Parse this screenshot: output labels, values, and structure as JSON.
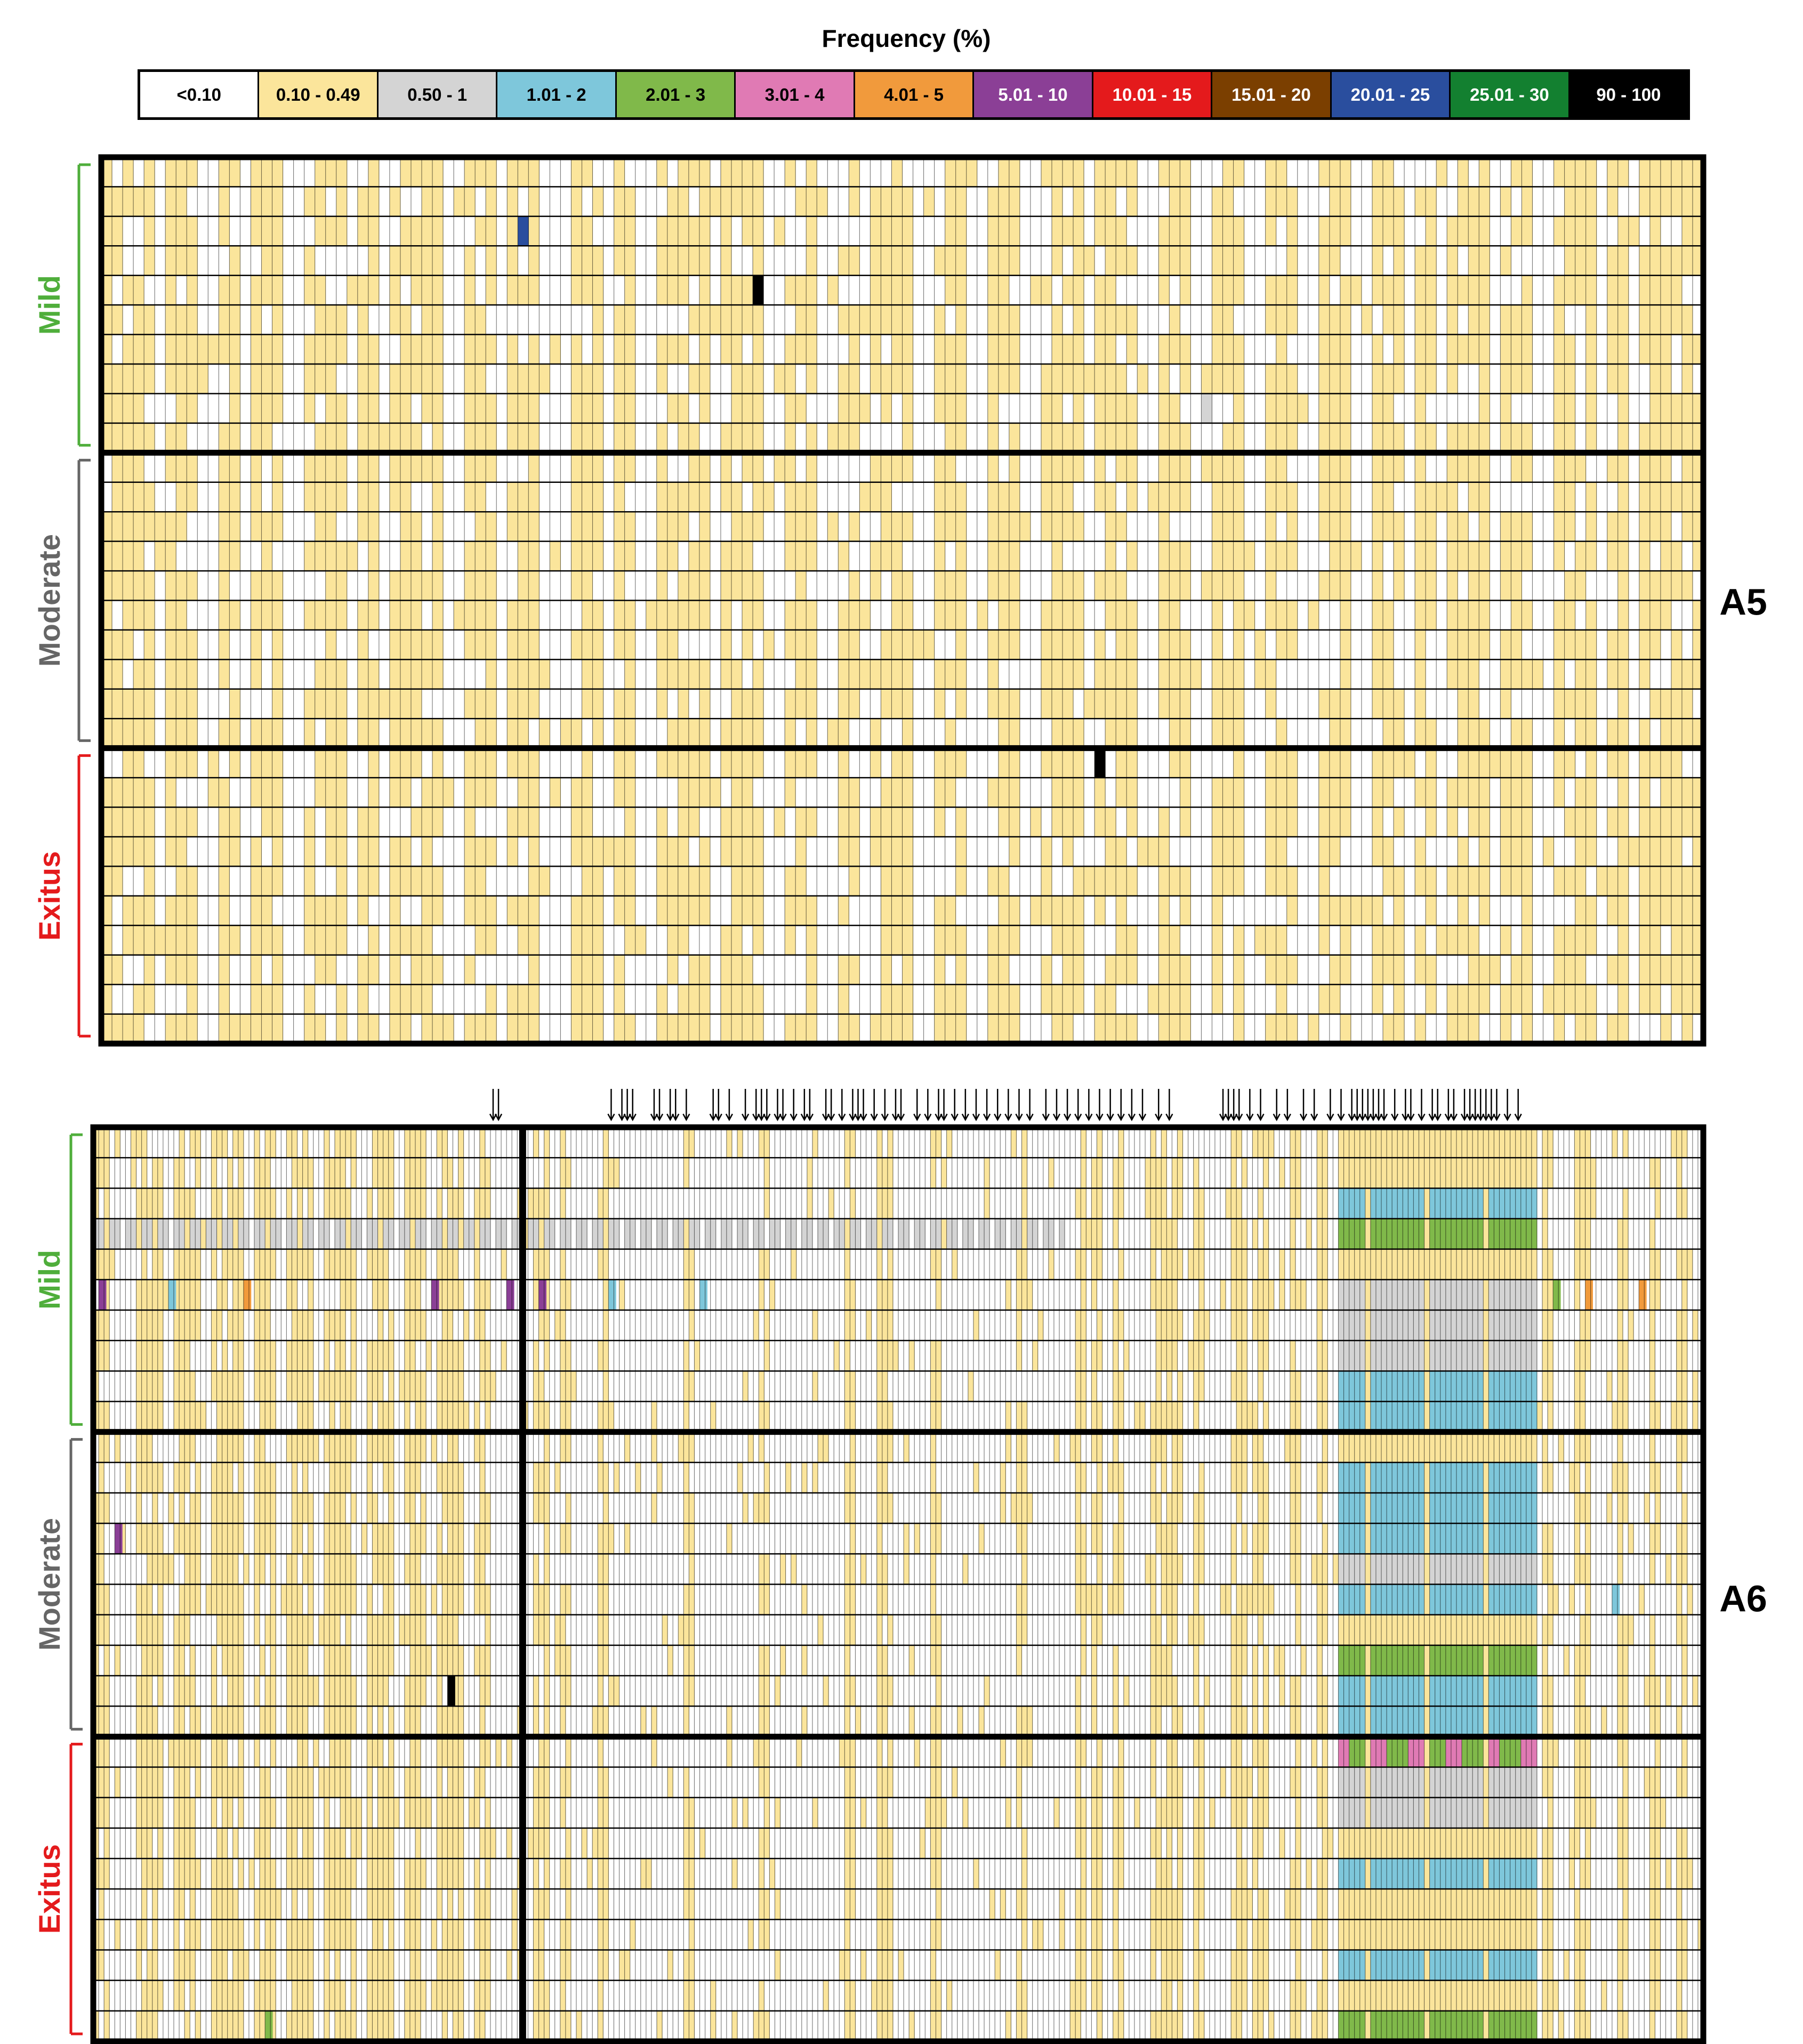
{
  "legend": {
    "title": "Frequency (%)",
    "bins": [
      {
        "label": "<0.10",
        "color": "#ffffff",
        "text_color": "#000000"
      },
      {
        "label": "0.10 - 0.49",
        "color": "#fbe59b",
        "text_color": "#000000"
      },
      {
        "label": "0.50 - 1",
        "color": "#d4d4d4",
        "text_color": "#000000"
      },
      {
        "label": "1.01 - 2",
        "color": "#7ec7db",
        "text_color": "#000000"
      },
      {
        "label": "2.01 - 3",
        "color": "#80b94a",
        "text_color": "#000000"
      },
      {
        "label": "3.01 - 4",
        "color": "#e07ab4",
        "text_color": "#000000"
      },
      {
        "label": "4.01 - 5",
        "color": "#f19a3c",
        "text_color": "#000000"
      },
      {
        "label": "5.01 - 10",
        "color": "#8b3f96",
        "text_color": "#ffffff"
      },
      {
        "label": "10.01 - 15",
        "color": "#e41a1c",
        "text_color": "#ffffff"
      },
      {
        "label": "15.01 - 20",
        "color": "#7b3f00",
        "text_color": "#ffffff"
      },
      {
        "label": "20.01 - 25",
        "color": "#2a4e9e",
        "text_color": "#ffffff"
      },
      {
        "label": "25.01 - 30",
        "color": "#138030",
        "text_color": "#ffffff"
      },
      {
        "label": "90 - 100",
        "color": "#000000",
        "text_color": "#ffffff"
      }
    ]
  },
  "chart_data": [
    {
      "type": "heatmap",
      "panel_label": "A5",
      "columns": 150,
      "groups": [
        {
          "name": "Mild",
          "color": "#4fae3b",
          "rows": 10
        },
        {
          "name": "Moderate",
          "color": "#666666",
          "rows": 10
        },
        {
          "name": "Exitus",
          "color": "#e41a1c",
          "rows": 10
        }
      ],
      "yellow_column_bands": [
        [
          0,
          4
        ],
        [
          6,
          8
        ],
        [
          11,
          12
        ],
        [
          14,
          16
        ],
        [
          19,
          22
        ],
        [
          24,
          25
        ],
        [
          27,
          31
        ],
        [
          34,
          36
        ],
        [
          38,
          40
        ],
        [
          44,
          46
        ],
        [
          48,
          49
        ],
        [
          52,
          56
        ],
        [
          58,
          61
        ],
        [
          64,
          66
        ],
        [
          69,
          70
        ],
        [
          72,
          75
        ],
        [
          78,
          80
        ],
        [
          83,
          85
        ],
        [
          88,
          91
        ],
        [
          93,
          96
        ],
        [
          99,
          101
        ],
        [
          104,
          106
        ],
        [
          109,
          111
        ],
        [
          114,
          116
        ],
        [
          119,
          121
        ],
        [
          123,
          124
        ],
        [
          126,
          129
        ],
        [
          131,
          133
        ],
        [
          136,
          139
        ],
        [
          141,
          142
        ],
        [
          144,
          149
        ]
      ],
      "notable_cells": [
        {
          "row": 2,
          "col": 39,
          "bin": "20.01 - 25"
        },
        {
          "row": 4,
          "col": 61,
          "bin": "90 - 100"
        },
        {
          "row": 8,
          "col": 103,
          "bin": "0.50 - 1"
        },
        {
          "row": 20,
          "col": 93,
          "bin": "90 - 100"
        }
      ]
    },
    {
      "type": "heatmap",
      "panel_label": "A6",
      "columns": 300,
      "divider_after_column": 79,
      "groups": [
        {
          "name": "Mild",
          "color": "#4fae3b",
          "rows": 10
        },
        {
          "name": "Moderate",
          "color": "#666666",
          "rows": 10
        },
        {
          "name": "Exitus",
          "color": "#e41a1c",
          "rows": 10
        }
      ],
      "arrow_columns": [
        74,
        75,
        96,
        98,
        99,
        100,
        104,
        105,
        107,
        108,
        110,
        115,
        116,
        118,
        121,
        123,
        124,
        125,
        127,
        128,
        130,
        132,
        133,
        136,
        137,
        139,
        141,
        142,
        143,
        145,
        147,
        149,
        150,
        153,
        155,
        157,
        158,
        160,
        162,
        164,
        166,
        168,
        170,
        172,
        174,
        177,
        179,
        181,
        183,
        185,
        187,
        189,
        191,
        193,
        195,
        198,
        200,
        210,
        211,
        212,
        213,
        215,
        217,
        220,
        222,
        225,
        227,
        230,
        232,
        234,
        235,
        236,
        237,
        238,
        239,
        240,
        242,
        244,
        245,
        247,
        249,
        250,
        252,
        253,
        255,
        256,
        257,
        258,
        259,
        260,
        261,
        263,
        265
      ],
      "yellow_column_bands": [
        [
          0,
          2
        ],
        [
          8,
          12
        ],
        [
          15,
          19
        ],
        [
          22,
          27
        ],
        [
          30,
          33
        ],
        [
          36,
          40
        ],
        [
          43,
          48
        ],
        [
          51,
          55
        ],
        [
          58,
          61
        ],
        [
          64,
          68
        ],
        [
          71,
          73
        ],
        [
          82,
          84
        ],
        [
          87,
          88
        ],
        [
          94,
          95
        ],
        [
          110,
          111
        ],
        [
          124,
          125
        ],
        [
          140,
          141
        ],
        [
          146,
          148
        ],
        [
          156,
          157
        ],
        [
          172,
          173
        ],
        [
          183,
          184
        ],
        [
          186,
          187
        ],
        [
          190,
          191
        ],
        [
          197,
          202
        ],
        [
          205,
          206
        ],
        [
          212,
          214
        ],
        [
          216,
          218
        ],
        [
          223,
          224
        ],
        [
          228,
          229
        ],
        [
          232,
          233
        ],
        [
          265,
          266
        ],
        [
          270,
          271
        ],
        [
          276,
          278
        ],
        [
          284,
          285
        ],
        [
          290,
          291
        ],
        [
          295,
          296
        ]
      ],
      "block_columns": [
        232,
        268
      ],
      "notable_cells": [
        {
          "row": 3,
          "col_range": [
            0,
            180
          ],
          "bin": "0.50 - 1"
        },
        {
          "row": 5,
          "col": 1,
          "bin": "5.01 - 10"
        },
        {
          "row": 5,
          "col": 14,
          "bin": "1.01 - 2"
        },
        {
          "row": 5,
          "col": 28,
          "bin": "4.01 - 5"
        },
        {
          "row": 5,
          "col": 63,
          "bin": "5.01 - 10"
        },
        {
          "row": 5,
          "col": 77,
          "bin": "5.01 - 10"
        },
        {
          "row": 5,
          "col": 83,
          "bin": "5.01 - 10"
        },
        {
          "row": 5,
          "col": 96,
          "bin": "1.01 - 2"
        },
        {
          "row": 5,
          "col": 113,
          "bin": "1.01 - 2"
        },
        {
          "row": 5,
          "col": 272,
          "bin": "2.01 - 3"
        },
        {
          "row": 5,
          "col": 278,
          "bin": "4.01 - 5"
        },
        {
          "row": 5,
          "col": 288,
          "bin": "4.01 - 5"
        },
        {
          "row": 13,
          "col": 4,
          "bin": "5.01 - 10"
        },
        {
          "row": 15,
          "col": 283,
          "bin": "1.01 - 2"
        },
        {
          "row": 18,
          "col": 66,
          "bin": "90 - 100"
        },
        {
          "row": 29,
          "col": 32,
          "bin": "2.01 - 3"
        }
      ]
    }
  ]
}
